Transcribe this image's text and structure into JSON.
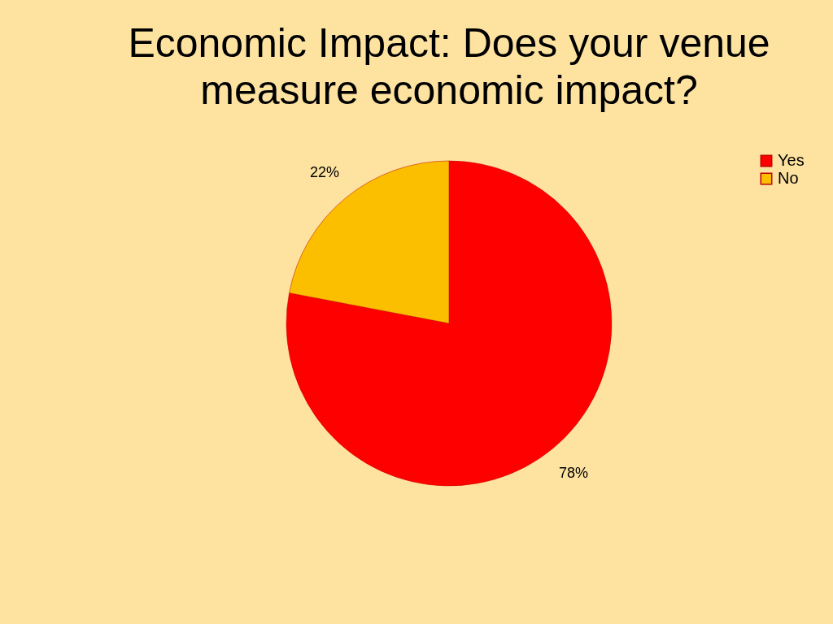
{
  "chart_data": {
    "type": "pie",
    "title": "Economic Impact:  Does your venue measure economic impact?",
    "categories": [
      "Yes",
      "No"
    ],
    "values": [
      78,
      22
    ],
    "colors": [
      "#ff0000",
      "#fbbf00"
    ],
    "value_labels": [
      "78%",
      "22%"
    ],
    "legend": "right"
  }
}
